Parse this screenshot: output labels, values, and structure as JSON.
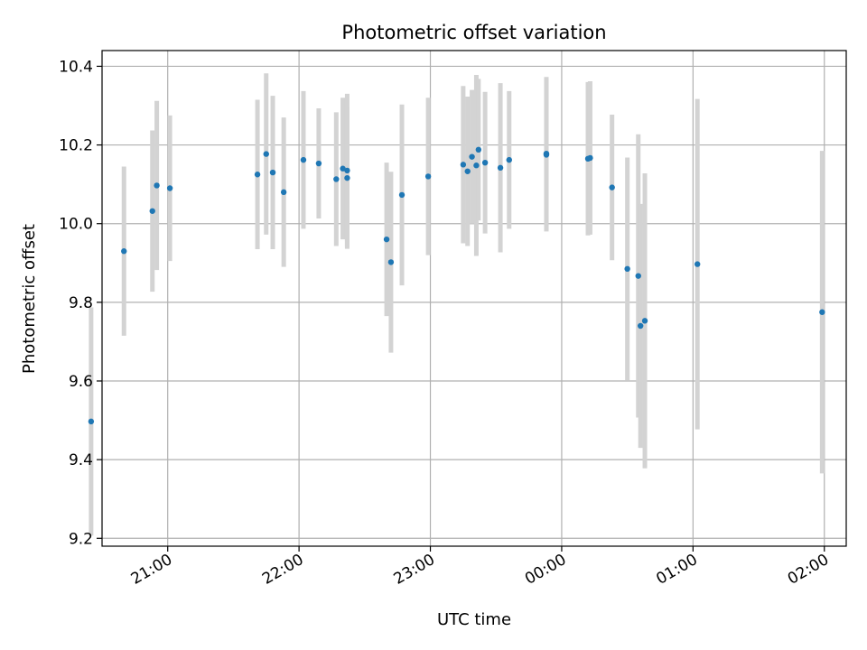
{
  "chart_data": {
    "type": "scatter",
    "title": "Photometric offset variation",
    "xlabel": "UTC time",
    "ylabel": "Photometric offset",
    "x_tick_labels": [
      "21:00",
      "22:00",
      "23:00",
      "00:00",
      "01:00",
      "02:00"
    ],
    "y_tick_labels": [
      "9.2",
      "9.4",
      "9.6",
      "9.8",
      "10.0",
      "10.2",
      "10.4"
    ],
    "y_ticks": [
      9.2,
      9.4,
      9.6,
      9.8,
      10.0,
      10.2,
      10.4
    ],
    "x_ticks": [
      "21:00",
      "22:00",
      "23:00",
      "00:00",
      "01:00",
      "02:00"
    ],
    "x_range": [
      "20:30",
      "02:10"
    ],
    "y_range": [
      9.18,
      10.44
    ],
    "grid": true,
    "colors": {
      "points": "#1f77b4",
      "errorbars": "#d3d3d3",
      "grid": "#b0b0b0"
    },
    "series": [
      {
        "points": [
          {
            "x": "20:25",
            "y": 9.497,
            "err": 0.29
          },
          {
            "x": "20:40",
            "y": 9.93,
            "err": 0.215
          },
          {
            "x": "20:53",
            "y": 10.032,
            "err": 0.205
          },
          {
            "x": "20:55",
            "y": 10.097,
            "err": 0.215
          },
          {
            "x": "21:01",
            "y": 10.09,
            "err": 0.185
          },
          {
            "x": "21:41",
            "y": 10.125,
            "err": 0.19
          },
          {
            "x": "21:45",
            "y": 10.177,
            "err": 0.205
          },
          {
            "x": "21:48",
            "y": 10.13,
            "err": 0.195
          },
          {
            "x": "21:53",
            "y": 10.08,
            "err": 0.19
          },
          {
            "x": "22:02",
            "y": 10.162,
            "err": 0.175
          },
          {
            "x": "22:09",
            "y": 10.153,
            "err": 0.14
          },
          {
            "x": "22:17",
            "y": 10.113,
            "err": 0.17
          },
          {
            "x": "22:20",
            "y": 10.14,
            "err": 0.18
          },
          {
            "x": "22:22",
            "y": 10.116,
            "err": 0.18
          },
          {
            "x": "22:22",
            "y": 10.135,
            "err": 0.195
          },
          {
            "x": "22:40",
            "y": 9.96,
            "err": 0.195
          },
          {
            "x": "22:42",
            "y": 9.902,
            "err": 0.23
          },
          {
            "x": "22:47",
            "y": 10.073,
            "err": 0.23
          },
          {
            "x": "22:59",
            "y": 10.12,
            "err": 0.2
          },
          {
            "x": "23:15",
            "y": 10.15,
            "err": 0.2
          },
          {
            "x": "23:17",
            "y": 10.133,
            "err": 0.19
          },
          {
            "x": "23:19",
            "y": 10.17,
            "err": 0.17
          },
          {
            "x": "23:21",
            "y": 10.148,
            "err": 0.23
          },
          {
            "x": "23:22",
            "y": 10.188,
            "err": 0.18
          },
          {
            "x": "23:25",
            "y": 10.155,
            "err": 0.18
          },
          {
            "x": "23:32",
            "y": 10.142,
            "err": 0.215
          },
          {
            "x": "23:36",
            "y": 10.162,
            "err": 0.175
          },
          {
            "x": "23:53",
            "y": 10.175,
            "err": 0.195
          },
          {
            "x": "23:53",
            "y": 10.178,
            "err": 0.195
          },
          {
            "x": "00:12",
            "y": 10.165,
            "err": 0.195
          },
          {
            "x": "00:13",
            "y": 10.167,
            "err": 0.195
          },
          {
            "x": "00:23",
            "y": 10.092,
            "err": 0.185
          },
          {
            "x": "00:30",
            "y": 9.885,
            "err": 0.283
          },
          {
            "x": "00:35",
            "y": 9.867,
            "err": 0.36
          },
          {
            "x": "00:36",
            "y": 9.74,
            "err": 0.31
          },
          {
            "x": "00:38",
            "y": 9.753,
            "err": 0.375
          },
          {
            "x": "01:02",
            "y": 9.897,
            "err": 0.42
          },
          {
            "x": "01:59",
            "y": 9.775,
            "err": 0.41
          }
        ]
      }
    ]
  }
}
